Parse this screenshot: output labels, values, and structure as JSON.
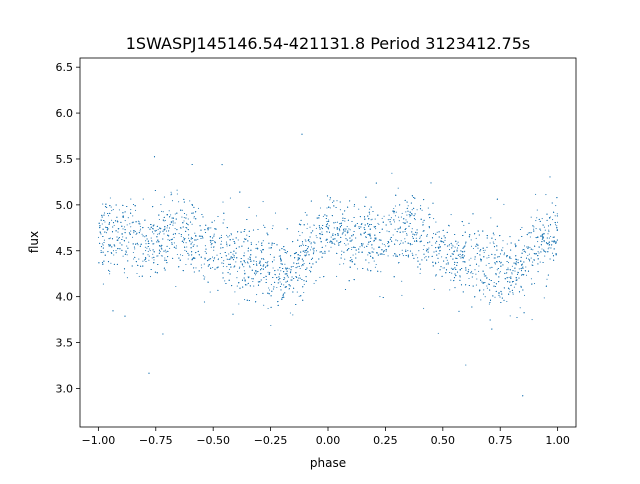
{
  "chart_data": {
    "type": "scatter",
    "title": "1SWASPJ145146.54-421131.8 Period 3123412.75s",
    "xlabel": "phase",
    "ylabel": "flux",
    "xlim": [
      -1.08,
      1.08
    ],
    "ylim": [
      2.58,
      6.6
    ],
    "xticks": [
      -1.0,
      -0.75,
      -0.5,
      -0.25,
      0.0,
      0.25,
      0.5,
      0.75,
      1.0
    ],
    "xtick_labels": [
      "−1.00",
      "−0.75",
      "−0.50",
      "−0.25",
      "0.00",
      "0.25",
      "0.50",
      "0.75",
      "1.00"
    ],
    "yticks": [
      3.0,
      3.5,
      4.0,
      4.5,
      5.0,
      5.5,
      6.0,
      6.5
    ],
    "ytick_labels": [
      "3.0",
      "3.5",
      "4.0",
      "4.5",
      "5.0",
      "5.5",
      "6.0",
      "6.5"
    ],
    "grid": false,
    "marker_color": "#1f77b4",
    "series": [
      {
        "x": [
          -1.0,
          -0.95,
          -0.9,
          -0.85,
          -0.8,
          -0.75,
          -0.7,
          -0.65,
          -0.6,
          -0.55,
          -0.5,
          -0.45,
          -0.4,
          -0.35,
          -0.3,
          -0.25,
          -0.2,
          -0.15,
          -0.1,
          -0.05,
          0.0,
          0.05,
          0.1,
          0.15,
          0.2,
          0.25,
          0.3,
          0.35,
          0.4,
          0.45,
          0.5,
          0.55,
          0.6,
          0.65,
          0.7,
          0.75,
          0.8,
          0.85,
          0.9,
          0.95,
          1.0
        ],
        "y": [
          4.7,
          4.68,
          4.65,
          4.62,
          4.6,
          4.62,
          4.7,
          4.72,
          4.68,
          4.6,
          4.5,
          4.45,
          4.42,
          4.38,
          4.35,
          4.3,
          4.28,
          4.35,
          4.5,
          4.62,
          4.7,
          4.68,
          4.65,
          4.62,
          4.6,
          4.62,
          4.7,
          4.72,
          4.68,
          4.6,
          4.5,
          4.45,
          4.42,
          4.38,
          4.35,
          4.3,
          4.28,
          4.35,
          4.5,
          4.62,
          4.7
        ]
      }
    ]
  }
}
